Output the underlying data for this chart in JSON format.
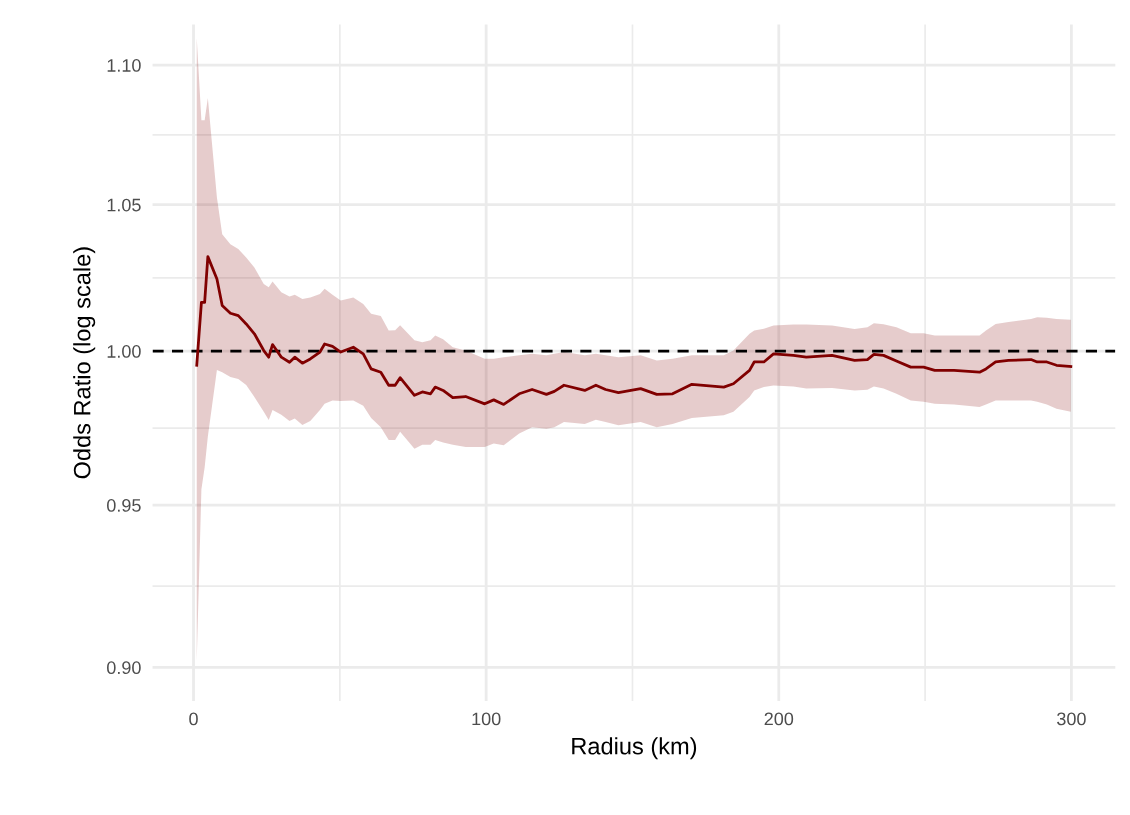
{
  "chart_data": {
    "type": "line",
    "xlabel": "Radius (km)",
    "ylabel": "Odds Ratio (log scale)",
    "log": "y",
    "xlim": [
      -14,
      315
    ],
    "ylim": [
      0.89,
      1.115
    ],
    "xticks": [
      0,
      {
        "value": 50,
        "label": null
      },
      100,
      {
        "value": 150,
        "label": null
      },
      200,
      {
        "value": 250,
        "label": null
      },
      300
    ],
    "yticks": [
      {
        "value": 0.9,
        "label": "0.90"
      },
      {
        "value": 0.9247,
        "label": null
      },
      0.95,
      {
        "value": 0.9747,
        "label": null
      },
      {
        "value": 1.0,
        "label": "1.00"
      },
      {
        "value": 1.0247,
        "label": null
      },
      1.05,
      {
        "value": 1.0747,
        "label": null
      },
      {
        "value": 1.1,
        "label": "1.10"
      }
    ],
    "grid": true,
    "marker": "none",
    "line_style": "solid",
    "ref_lines": [
      {
        "axis": "y",
        "value": 1.0,
        "color": "#000000",
        "line_style": "dashed"
      }
    ],
    "series": [
      {
        "color": "#800000",
        "x": [
          1.1,
          2.7,
          3.8,
          4.9,
          8.0,
          9.8,
          12.6,
          15.3,
          18.0,
          20.8,
          24.0,
          25.7,
          27.0,
          30.0,
          32.8,
          34.6,
          37.2,
          39.9,
          43.2,
          44.8,
          47.5,
          50.3,
          54.6,
          58.0,
          60.7,
          64.0,
          66.7,
          68.9,
          70.6,
          75.5,
          78.2,
          81.0,
          82.6,
          85.3,
          88.6,
          93.0,
          99.5,
          102.6,
          106.0,
          111.3,
          115.7,
          120.6,
          123.3,
          126.6,
          133.7,
          137.5,
          140.8,
          145.2,
          152.8,
          158.3,
          163.7,
          170.3,
          181.2,
          184.5,
          190.0,
          191.6,
          194.9,
          198.2,
          205.0,
          209.4,
          218.2,
          225.9,
          230.3,
          232.5,
          235.8,
          240.2,
          245.1,
          249.5,
          253.3,
          259.9,
          268.6,
          270.8,
          274.1,
          278.5,
          286.2,
          288.3,
          291.6,
          294.9,
          299.8
        ],
        "values": [
          0.9953,
          1.0164,
          1.0164,
          1.032,
          1.0243,
          1.0153,
          1.0127,
          1.0119,
          1.0091,
          1.0058,
          1.0002,
          0.998,
          1.0022,
          0.998,
          0.9963,
          0.998,
          0.996,
          0.9974,
          0.9997,
          1.0024,
          1.0016,
          0.9997,
          1.0013,
          0.9991,
          0.9941,
          0.993,
          0.9887,
          0.9887,
          0.9912,
          0.9854,
          0.9865,
          0.9859,
          0.9881,
          0.987,
          0.9846,
          0.985,
          0.9826,
          0.9839,
          0.9824,
          0.9859,
          0.9873,
          0.9857,
          0.9867,
          0.9887,
          0.987,
          0.9887,
          0.9873,
          0.9863,
          0.9876,
          0.9857,
          0.9859,
          0.989,
          0.9881,
          0.9892,
          0.9936,
          0.9964,
          0.9964,
          0.9991,
          0.9986,
          0.998,
          0.9986,
          0.9969,
          0.9972,
          0.9989,
          0.9986,
          0.9967,
          0.9947,
          0.9947,
          0.9936,
          0.9936,
          0.993,
          0.9941,
          0.9964,
          0.9969,
          0.9972,
          0.9964,
          0.9964,
          0.9953,
          0.9949
        ],
        "upper": [
          1.11,
          1.08,
          1.08,
          1.088,
          1.0525,
          1.0397,
          1.0363,
          1.0346,
          1.0317,
          1.0283,
          1.0226,
          1.0215,
          1.0235,
          1.0198,
          1.0184,
          1.019,
          1.0175,
          1.018,
          1.0192,
          1.021,
          1.019,
          1.017,
          1.018,
          1.0158,
          1.0125,
          1.0118,
          1.0069,
          1.007,
          1.0087,
          1.0036,
          1.003,
          1.0036,
          1.0052,
          1.004,
          1.0013,
          1.0002,
          0.9975,
          0.9975,
          0.998,
          0.9986,
          0.9991,
          0.9986,
          0.9991,
          0.9997,
          0.9986,
          0.9991,
          0.9986,
          0.998,
          0.9986,
          0.9969,
          0.9975,
          0.9986,
          0.9986,
          1.0002,
          1.0058,
          1.0069,
          1.0075,
          1.0086,
          1.0089,
          1.0089,
          1.0086,
          1.0074,
          1.008,
          1.0093,
          1.009,
          1.008,
          1.006,
          1.006,
          1.0052,
          1.0052,
          1.0052,
          1.0069,
          1.0091,
          1.0098,
          1.0108,
          1.0114,
          1.0112,
          1.0108,
          1.0105
        ],
        "lower": [
          0.902,
          0.955,
          0.962,
          0.972,
          0.9937,
          0.993,
          0.9914,
          0.9908,
          0.9888,
          0.9848,
          0.98,
          0.9773,
          0.9806,
          0.979,
          0.977,
          0.9778,
          0.9757,
          0.977,
          0.9806,
          0.9826,
          0.9837,
          0.9835,
          0.9837,
          0.982,
          0.978,
          0.975,
          0.9708,
          0.9708,
          0.9735,
          0.968,
          0.9693,
          0.9693,
          0.9708,
          0.97,
          0.9693,
          0.9686,
          0.9686,
          0.9697,
          0.9691,
          0.9729,
          0.975,
          0.9745,
          0.975,
          0.9767,
          0.976,
          0.9774,
          0.9767,
          0.9756,
          0.9767,
          0.975,
          0.976,
          0.978,
          0.9789,
          0.98,
          0.9848,
          0.987,
          0.9881,
          0.9886,
          0.9883,
          0.9876,
          0.9878,
          0.987,
          0.9872,
          0.9883,
          0.9876,
          0.9859,
          0.9837,
          0.9833,
          0.9826,
          0.9824,
          0.9816,
          0.9824,
          0.9837,
          0.9837,
          0.9837,
          0.9833,
          0.9824,
          0.981,
          0.98
        ]
      }
    ]
  }
}
